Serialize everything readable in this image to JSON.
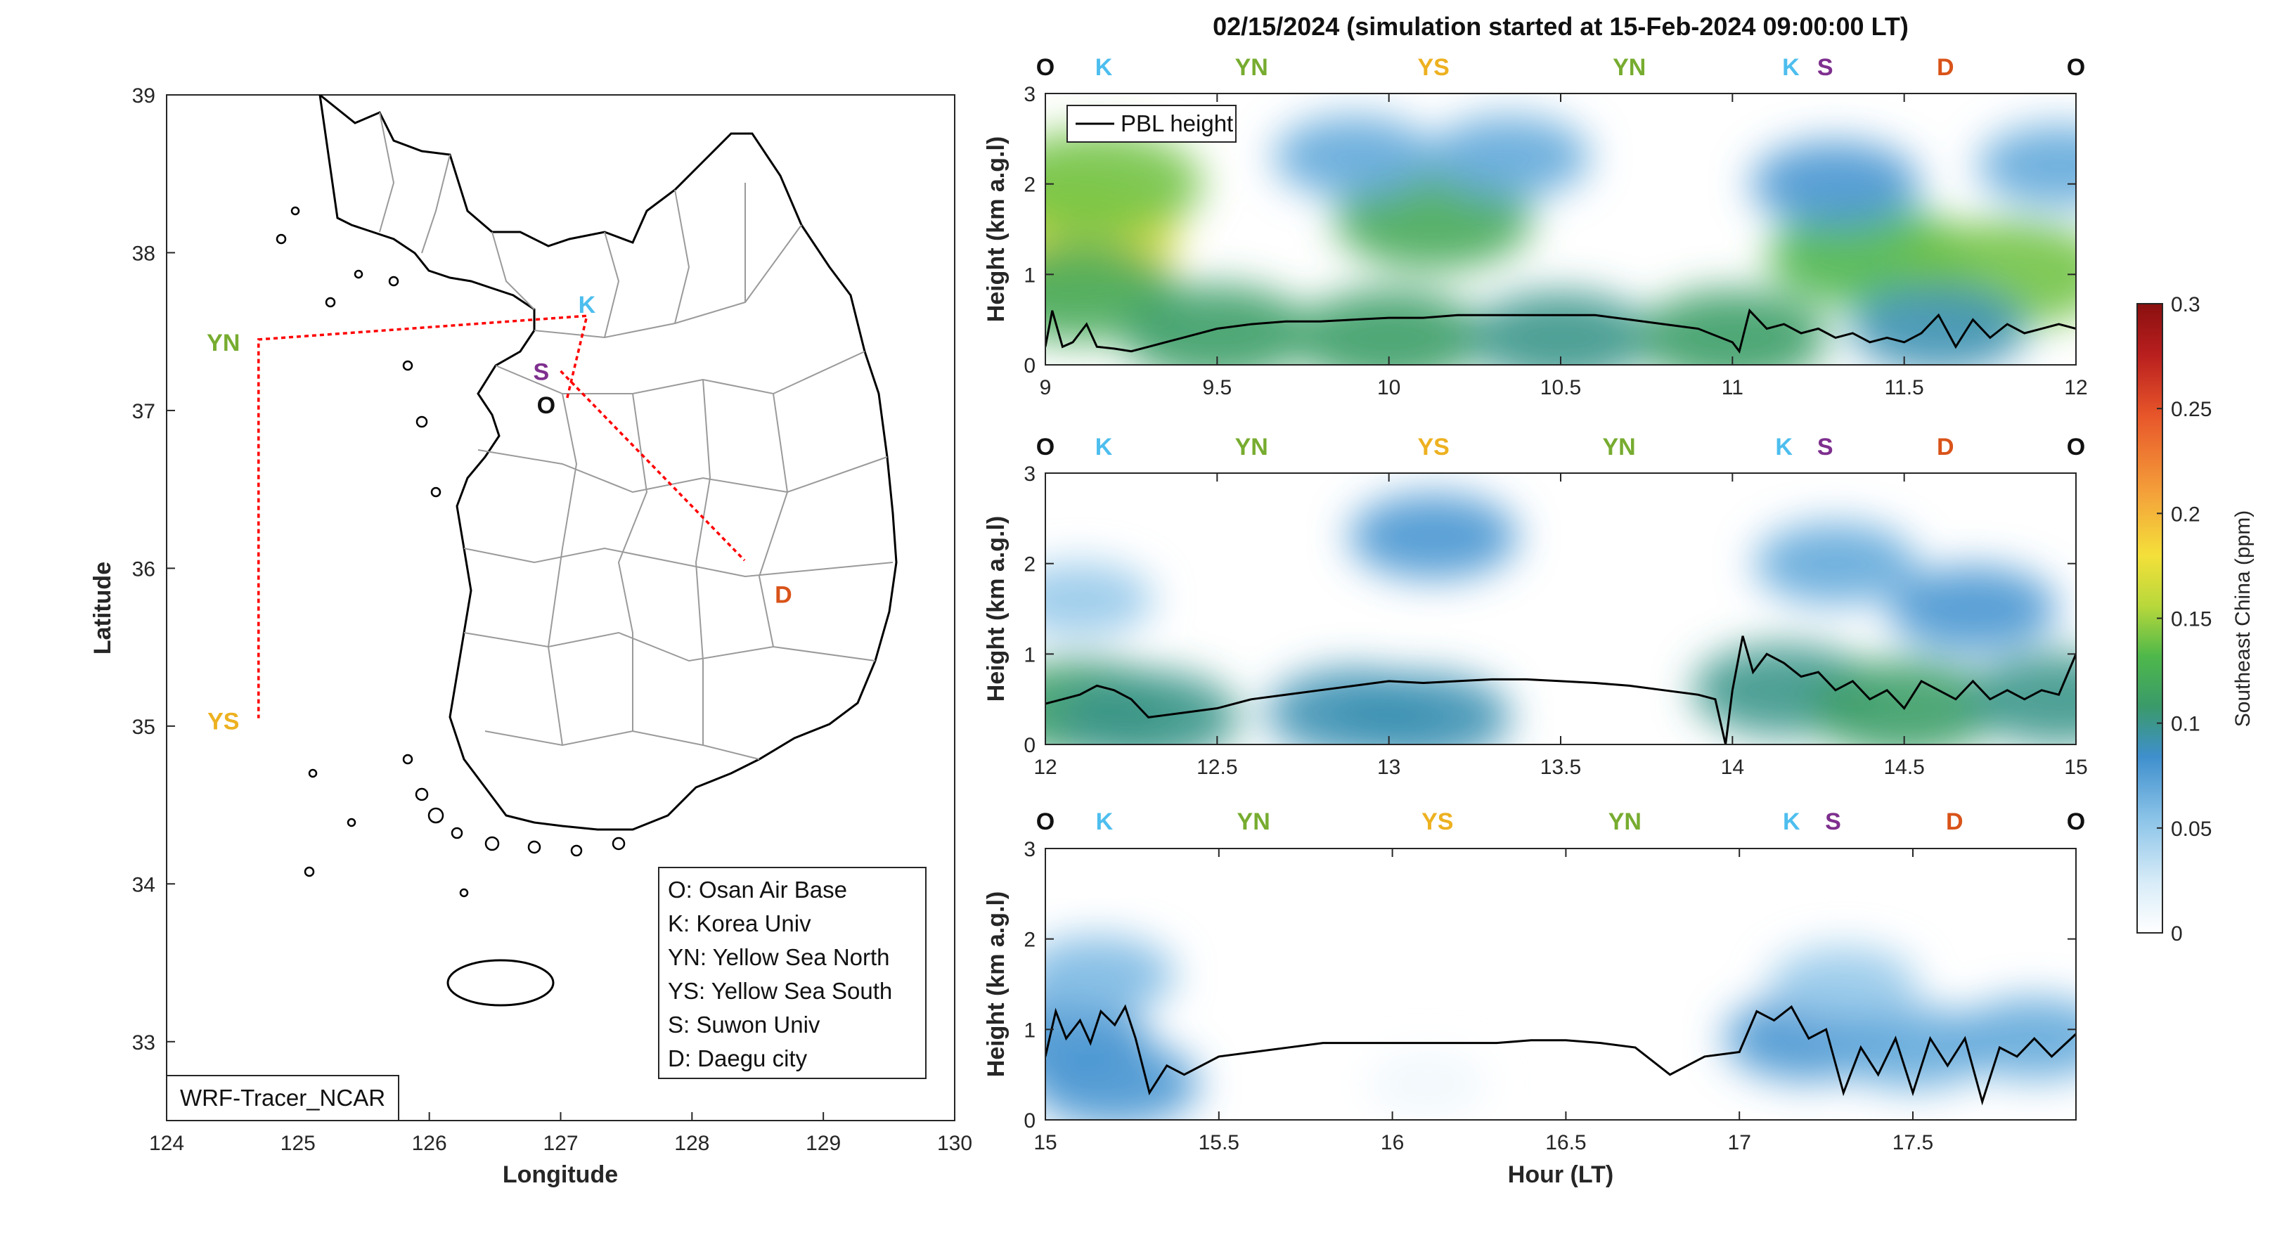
{
  "title": "02/15/2024 (simulation started at 15-Feb-2024 09:00:00 LT)",
  "colors": {
    "O": "#111111",
    "K": "#4DBEEE",
    "YN": "#77AC30",
    "YS": "#EDB120",
    "S": "#7E2F8E",
    "D": "#D95319",
    "route": "#ff0000",
    "colormap": [
      "#ffffff",
      "#d8ecf8",
      "#8cc4e8",
      "#3f8fcd",
      "#3a9a6a",
      "#4fb84a",
      "#b8d83b",
      "#f4e03a",
      "#f4a03a",
      "#e8572a",
      "#b81e1e",
      "#8a1010"
    ]
  },
  "map": {
    "xlabel": "Longitude",
    "ylabel": "Latitude",
    "xticks": [
      "124",
      "125",
      "126",
      "127",
      "128",
      "129",
      "130"
    ],
    "yticks": [
      "39",
      "38",
      "37",
      "36",
      "35",
      "34",
      "33"
    ],
    "xlim": [
      124,
      130
    ],
    "ylim": [
      32.5,
      39
    ],
    "model_label": "WRF-Tracer_NCAR",
    "legend": [
      "O: Osan Air Base",
      "K: Korea Univ",
      "YN: Yellow Sea North",
      "YS: Yellow Sea South",
      "S: Suwon Univ",
      "D: Daegu city"
    ],
    "sites": [
      {
        "code": "K",
        "lon": 127.2,
        "lat": 37.6
      },
      {
        "code": "S",
        "lon": 126.97,
        "lat": 37.3
      },
      {
        "code": "O",
        "lon": 127.05,
        "lat": 37.08
      },
      {
        "code": "D",
        "lon": 128.6,
        "lat": 35.87
      },
      {
        "code": "YN",
        "lon": 124.7,
        "lat": 37.45
      },
      {
        "code": "YS",
        "lon": 124.7,
        "lat": 35.05
      }
    ],
    "route": [
      [
        127.05,
        37.08
      ],
      [
        127.2,
        37.6
      ],
      [
        124.7,
        37.45
      ],
      [
        124.7,
        35.05
      ]
    ],
    "route2": [
      [
        127.0,
        37.25
      ],
      [
        128.4,
        36.05
      ]
    ]
  },
  "colorbar": {
    "label": "Southeast China (ppm)",
    "ticks": [
      "0",
      "0.05",
      "0.1",
      "0.15",
      "0.2",
      "0.25",
      "0.3"
    ],
    "range": [
      0,
      0.3
    ]
  },
  "panels_common": {
    "ylabel": "Height (km a.g.l)",
    "xlabel": "Hour (LT)",
    "yticks": [
      "0",
      "1",
      "2",
      "3"
    ],
    "ylim": [
      0,
      3
    ],
    "legend_label": "PBL height",
    "site_sequence": [
      "O",
      "K",
      "YN",
      "YS",
      "YN",
      "K",
      "S",
      "D",
      "O"
    ]
  },
  "chart_data": [
    {
      "type": "heatmap",
      "xlim": [
        9,
        12
      ],
      "xticks": [
        "9",
        "9.5",
        "10",
        "10.5",
        "11",
        "11.5",
        "12"
      ],
      "site_hours": [
        9.0,
        9.17,
        9.6,
        10.13,
        10.7,
        11.17,
        11.27,
        11.62,
        12.0
      ],
      "pbl_height": {
        "x": [
          9.0,
          9.02,
          9.05,
          9.08,
          9.12,
          9.15,
          9.2,
          9.25,
          9.3,
          9.4,
          9.5,
          9.6,
          9.7,
          9.8,
          9.9,
          10.0,
          10.1,
          10.2,
          10.3,
          10.4,
          10.5,
          10.6,
          10.7,
          10.8,
          10.9,
          11.0,
          11.02,
          11.05,
          11.1,
          11.15,
          11.2,
          11.25,
          11.3,
          11.35,
          11.4,
          11.45,
          11.5,
          11.55,
          11.6,
          11.65,
          11.7,
          11.75,
          11.8,
          11.85,
          11.9,
          11.95,
          12.0
        ],
        "y": [
          0.2,
          0.6,
          0.2,
          0.25,
          0.45,
          0.2,
          0.18,
          0.15,
          0.2,
          0.3,
          0.4,
          0.45,
          0.48,
          0.48,
          0.5,
          0.52,
          0.52,
          0.55,
          0.55,
          0.55,
          0.55,
          0.55,
          0.5,
          0.45,
          0.4,
          0.25,
          0.15,
          0.6,
          0.4,
          0.45,
          0.35,
          0.4,
          0.3,
          0.35,
          0.25,
          0.3,
          0.25,
          0.35,
          0.55,
          0.2,
          0.5,
          0.3,
          0.45,
          0.35,
          0.4,
          0.45,
          0.4
        ]
      },
      "concentration_blobs": [
        {
          "x": 9.05,
          "y": 1.4,
          "v": 0.17
        },
        {
          "x": 9.15,
          "y": 2.0,
          "v": 0.14
        },
        {
          "x": 9.1,
          "y": 0.8,
          "v": 0.12
        },
        {
          "x": 9.5,
          "y": 0.35,
          "v": 0.11
        },
        {
          "x": 10.0,
          "y": 0.3,
          "v": 0.11
        },
        {
          "x": 10.5,
          "y": 0.3,
          "v": 0.1
        },
        {
          "x": 11.0,
          "y": 0.3,
          "v": 0.11
        },
        {
          "x": 10.13,
          "y": 1.6,
          "v": 0.12
        },
        {
          "x": 9.9,
          "y": 2.3,
          "v": 0.07
        },
        {
          "x": 10.35,
          "y": 2.3,
          "v": 0.07
        },
        {
          "x": 11.4,
          "y": 1.2,
          "v": 0.13
        },
        {
          "x": 11.8,
          "y": 1.0,
          "v": 0.14
        },
        {
          "x": 11.3,
          "y": 2.0,
          "v": 0.08
        },
        {
          "x": 11.95,
          "y": 2.2,
          "v": 0.07
        },
        {
          "x": 11.6,
          "y": 0.4,
          "v": 0.09
        }
      ]
    },
    {
      "type": "heatmap",
      "xlim": [
        12,
        15
      ],
      "xticks": [
        "12",
        "12.5",
        "13",
        "13.5",
        "14",
        "14.5",
        "15"
      ],
      "site_hours": [
        12.0,
        12.17,
        12.6,
        13.13,
        13.67,
        14.15,
        14.27,
        14.62,
        15.0
      ],
      "pbl_height": {
        "x": [
          12.0,
          12.05,
          12.1,
          12.15,
          12.2,
          12.25,
          12.3,
          12.4,
          12.5,
          12.6,
          12.7,
          12.8,
          12.9,
          13.0,
          13.1,
          13.2,
          13.3,
          13.4,
          13.5,
          13.6,
          13.7,
          13.8,
          13.9,
          13.95,
          13.98,
          14.0,
          14.03,
          14.06,
          14.1,
          14.15,
          14.2,
          14.25,
          14.3,
          14.35,
          14.4,
          14.45,
          14.5,
          14.55,
          14.6,
          14.65,
          14.7,
          14.75,
          14.8,
          14.85,
          14.9,
          14.95,
          15.0
        ],
        "y": [
          0.45,
          0.5,
          0.55,
          0.65,
          0.6,
          0.5,
          0.3,
          0.35,
          0.4,
          0.5,
          0.55,
          0.6,
          0.65,
          0.7,
          0.68,
          0.7,
          0.72,
          0.72,
          0.7,
          0.68,
          0.65,
          0.6,
          0.55,
          0.5,
          0.0,
          0.6,
          1.2,
          0.8,
          1.0,
          0.9,
          0.75,
          0.8,
          0.6,
          0.7,
          0.5,
          0.6,
          0.4,
          0.7,
          0.6,
          0.5,
          0.7,
          0.5,
          0.6,
          0.5,
          0.6,
          0.55,
          1.0
        ]
      },
      "concentration_blobs": [
        {
          "x": 12.1,
          "y": 0.4,
          "v": 0.11
        },
        {
          "x": 12.3,
          "y": 0.3,
          "v": 0.1
        },
        {
          "x": 12.9,
          "y": 0.35,
          "v": 0.09
        },
        {
          "x": 13.1,
          "y": 0.3,
          "v": 0.09
        },
        {
          "x": 13.13,
          "y": 2.3,
          "v": 0.08
        },
        {
          "x": 14.15,
          "y": 0.6,
          "v": 0.1
        },
        {
          "x": 14.5,
          "y": 0.4,
          "v": 0.11
        },
        {
          "x": 14.7,
          "y": 1.5,
          "v": 0.08
        },
        {
          "x": 14.3,
          "y": 2.0,
          "v": 0.07
        },
        {
          "x": 12.1,
          "y": 1.6,
          "v": 0.05
        },
        {
          "x": 14.95,
          "y": 0.5,
          "v": 0.1
        }
      ]
    },
    {
      "type": "heatmap",
      "xlim": [
        15,
        17.97
      ],
      "xticks": [
        "15",
        "15.5",
        "16",
        "16.5",
        "17",
        "17.5"
      ],
      "site_hours": [
        15.0,
        15.17,
        15.6,
        16.13,
        16.67,
        17.15,
        17.27,
        17.62,
        17.97
      ],
      "pbl_height": {
        "x": [
          15.0,
          15.03,
          15.06,
          15.1,
          15.13,
          15.16,
          15.2,
          15.23,
          15.26,
          15.3,
          15.35,
          15.4,
          15.5,
          15.6,
          15.7,
          15.8,
          15.9,
          16.0,
          16.1,
          16.2,
          16.3,
          16.4,
          16.5,
          16.6,
          16.7,
          16.8,
          16.9,
          17.0,
          17.05,
          17.1,
          17.15,
          17.2,
          17.25,
          17.3,
          17.35,
          17.4,
          17.45,
          17.5,
          17.55,
          17.6,
          17.65,
          17.7,
          17.75,
          17.8,
          17.85,
          17.9,
          17.97
        ],
        "y": [
          0.7,
          1.2,
          0.9,
          1.1,
          0.85,
          1.2,
          1.05,
          1.25,
          0.9,
          0.3,
          0.6,
          0.5,
          0.7,
          0.75,
          0.8,
          0.85,
          0.85,
          0.85,
          0.85,
          0.85,
          0.85,
          0.88,
          0.88,
          0.85,
          0.8,
          0.5,
          0.7,
          0.75,
          1.2,
          1.1,
          1.25,
          0.9,
          1.0,
          0.3,
          0.8,
          0.5,
          0.9,
          0.3,
          0.9,
          0.6,
          0.9,
          0.2,
          0.8,
          0.7,
          0.9,
          0.7,
          0.95
        ]
      },
      "concentration_blobs": [
        {
          "x": 15.05,
          "y": 0.9,
          "v": 0.08
        },
        {
          "x": 15.15,
          "y": 1.6,
          "v": 0.06
        },
        {
          "x": 15.2,
          "y": 0.4,
          "v": 0.08
        },
        {
          "x": 17.2,
          "y": 0.9,
          "v": 0.08
        },
        {
          "x": 17.5,
          "y": 0.8,
          "v": 0.07
        },
        {
          "x": 17.85,
          "y": 0.9,
          "v": 0.07
        },
        {
          "x": 17.3,
          "y": 1.5,
          "v": 0.05
        },
        {
          "x": 16.1,
          "y": 0.4,
          "v": 0.01
        }
      ]
    }
  ]
}
